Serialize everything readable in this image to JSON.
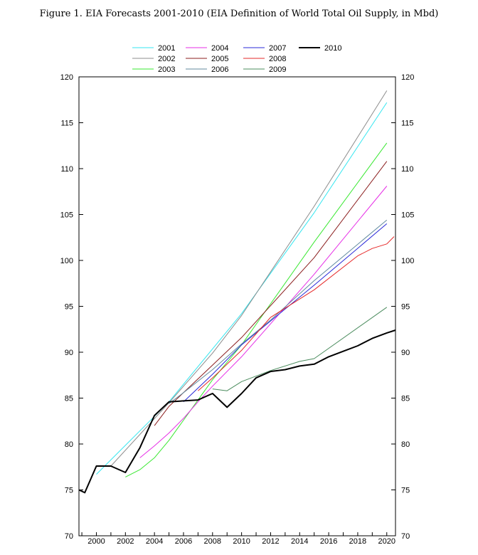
{
  "figure": {
    "title": "Figure 1. EIA Forecasts 2001-2010 (EIA Definition of World Total Oil Supply, in Mbd)"
  },
  "chart_data": {
    "type": "line",
    "title": "Figure 1. EIA Forecasts 2001-2010 (EIA Definition of World Total Oil Supply, in Mbd)",
    "xlabel": "",
    "ylabel": "",
    "xlim": [
      1998.8,
      2020.6
    ],
    "ylim": [
      70,
      120
    ],
    "x_ticks": [
      "2000",
      "2002",
      "2004",
      "2006",
      "2008",
      "2010",
      "2012",
      "2014",
      "2016",
      "2018",
      "2020"
    ],
    "y_ticks": [
      "70",
      "75",
      "80",
      "85",
      "90",
      "95",
      "100",
      "105",
      "110",
      "115",
      "120"
    ],
    "grid": false,
    "legend_position": "top",
    "series": [
      {
        "name": "2001",
        "color": "#33e6f0",
        "width": 1,
        "points": [
          [
            2000,
            76.7
          ],
          [
            2005,
            84.6
          ],
          [
            2010,
            94.2
          ],
          [
            2015,
            105.2
          ],
          [
            2020,
            117.2
          ]
        ]
      },
      {
        "name": "2002",
        "color": "#8c8c8c",
        "width": 1,
        "points": [
          [
            2001,
            77.6
          ],
          [
            2005,
            84.5
          ],
          [
            2008,
            89.9
          ],
          [
            2010,
            94.0
          ],
          [
            2015,
            105.9
          ],
          [
            2020,
            118.5
          ]
        ]
      },
      {
        "name": "2003",
        "color": "#3ae832",
        "width": 1,
        "points": [
          [
            2002,
            76.4
          ],
          [
            2003,
            77.2
          ],
          [
            2004,
            78.5
          ],
          [
            2005,
            80.4
          ],
          [
            2006,
            82.6
          ],
          [
            2007,
            84.8
          ],
          [
            2008,
            87.0
          ],
          [
            2010,
            90.8
          ],
          [
            2015,
            102.0
          ],
          [
            2020,
            112.8
          ]
        ]
      },
      {
        "name": "2004",
        "color": "#e62ee6",
        "width": 1,
        "points": [
          [
            2003,
            78.5
          ],
          [
            2004,
            79.8
          ],
          [
            2005,
            81.2
          ],
          [
            2006,
            82.8
          ],
          [
            2007,
            84.6
          ],
          [
            2008,
            86.3
          ],
          [
            2010,
            89.5
          ],
          [
            2015,
            98.5
          ],
          [
            2020,
            108.1
          ]
        ]
      },
      {
        "name": "2005",
        "color": "#8b1e1e",
        "width": 1,
        "points": [
          [
            2004,
            82.0
          ],
          [
            2005,
            84.1
          ],
          [
            2006,
            85.6
          ],
          [
            2008,
            88.6
          ],
          [
            2010,
            91.6
          ],
          [
            2015,
            100.3
          ],
          [
            2020,
            110.8
          ]
        ]
      },
      {
        "name": "2006",
        "color": "#608a9e",
        "width": 1,
        "points": [
          [
            2005,
            84.4
          ],
          [
            2006,
            85.6
          ],
          [
            2008,
            88.1
          ],
          [
            2010,
            90.9
          ],
          [
            2012,
            93.5
          ],
          [
            2015,
            97.8
          ],
          [
            2020,
            104.4
          ]
        ]
      },
      {
        "name": "2007",
        "color": "#2828d8",
        "width": 1,
        "points": [
          [
            2006,
            84.6
          ],
          [
            2008,
            87.6
          ],
          [
            2010,
            90.8
          ],
          [
            2012,
            93.4
          ],
          [
            2015,
            97.3
          ],
          [
            2020,
            104.0
          ]
        ]
      },
      {
        "name": "2008",
        "color": "#e62828",
        "width": 1,
        "points": [
          [
            2007,
            85.8
          ],
          [
            2008,
            87.2
          ],
          [
            2010,
            90.2
          ],
          [
            2012,
            93.8
          ],
          [
            2015,
            96.8
          ],
          [
            2018,
            100.5
          ],
          [
            2019,
            101.3
          ],
          [
            2020,
            101.8
          ],
          [
            2020.5,
            102.6
          ]
        ]
      },
      {
        "name": "2009",
        "color": "#4b8c5e",
        "width": 1,
        "points": [
          [
            2008,
            86.0
          ],
          [
            2009,
            85.8
          ],
          [
            2010,
            86.8
          ],
          [
            2012,
            88.0
          ],
          [
            2014,
            89.0
          ],
          [
            2015,
            89.3
          ],
          [
            2020,
            94.9
          ]
        ]
      },
      {
        "name": "2010",
        "color": "#000000",
        "width": 2,
        "points": [
          [
            1998.8,
            75.0
          ],
          [
            1999.2,
            74.7
          ],
          [
            2000,
            77.6
          ],
          [
            2001,
            77.6
          ],
          [
            2002,
            76.9
          ],
          [
            2003,
            79.6
          ],
          [
            2004,
            83.1
          ],
          [
            2005,
            84.6
          ],
          [
            2007,
            84.8
          ],
          [
            2008,
            85.5
          ],
          [
            2009,
            84.0
          ],
          [
            2010,
            85.5
          ],
          [
            2011,
            87.2
          ],
          [
            2012,
            87.9
          ],
          [
            2013,
            88.1
          ],
          [
            2014,
            88.5
          ],
          [
            2015,
            88.7
          ],
          [
            2016,
            89.5
          ],
          [
            2017,
            90.1
          ],
          [
            2018,
            90.7
          ],
          [
            2019,
            91.5
          ],
          [
            2020,
            92.1
          ],
          [
            2020.6,
            92.4
          ]
        ]
      }
    ]
  }
}
